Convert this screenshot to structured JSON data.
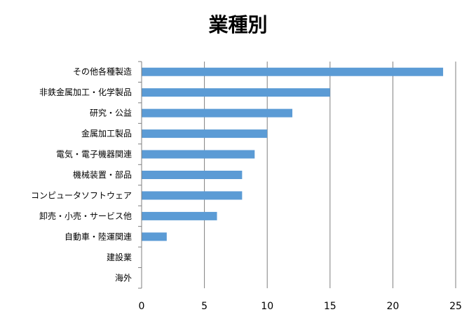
{
  "chart_data": {
    "type": "bar",
    "orientation": "horizontal",
    "title": "業種別",
    "categories": [
      "その他各種製造",
      "非鉄金属加工・化学製品",
      "研究・公益",
      "金属加工製品",
      "電気・電子機器関連",
      "機械装置・部品",
      "コンピュータソフトウェア",
      "卸売・小売・サービス他",
      "自動車・陸運関連",
      "建設業",
      "海外"
    ],
    "values": [
      24,
      15,
      12,
      10,
      9,
      8,
      8,
      6,
      2,
      0,
      0
    ],
    "xlim": [
      0,
      25
    ],
    "xticks": [
      "0",
      "5",
      "10",
      "15",
      "20",
      "25"
    ],
    "xlabel": "",
    "ylabel": "",
    "grid": "vertical",
    "legend": "none",
    "colors": {
      "bar": "#5b9bd5",
      "grid": "#7f7f7f",
      "axis": "#7f7f7f"
    }
  }
}
